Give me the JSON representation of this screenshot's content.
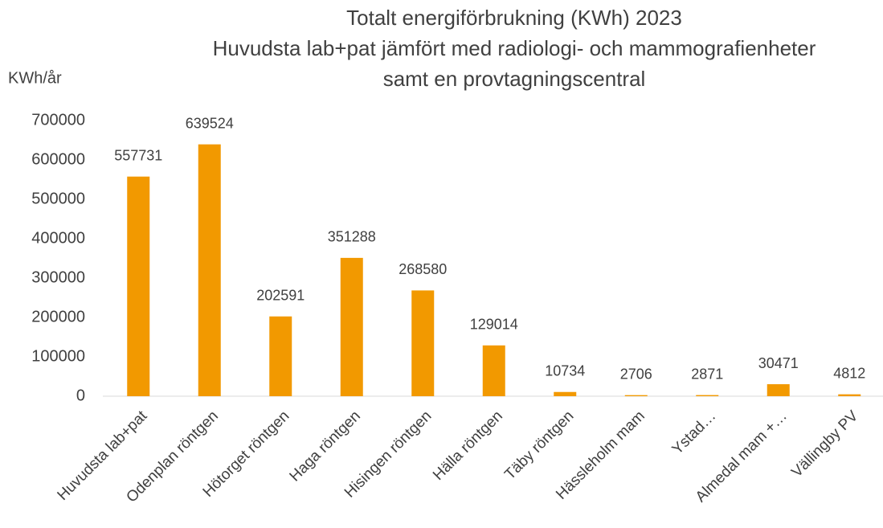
{
  "chart_data": {
    "type": "bar",
    "title": [
      "Totalt energiförbrukning (KWh) 2023",
      "Huvudsta lab+pat jämfört med radiologi- och mammografienheter",
      "samt en provtagningscentral"
    ],
    "y_label": "KWh/år",
    "categories": [
      "Huvudsta lab+pat",
      "Odenplan röntgen",
      "Hötorget röntgen",
      "Haga röntgen",
      "Hisingen röntgen",
      "Hälla röntgen",
      "Täby röntgen",
      "Hässleholm mam",
      "Ystad…",
      "Almedal mam +…",
      "Vällingby PV"
    ],
    "values": [
      557731,
      639524,
      202591,
      351288,
      268580,
      129014,
      10734,
      2706,
      2871,
      30471,
      4812
    ],
    "color": "#f29900",
    "ylim": [
      0,
      700000
    ],
    "yticks": [
      0,
      100000,
      200000,
      300000,
      400000,
      500000,
      600000,
      700000
    ],
    "grid": false
  }
}
